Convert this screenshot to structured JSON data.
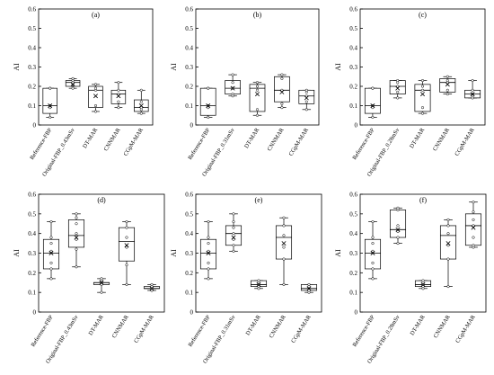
{
  "chart_data": [
    {
      "panel": "(a)",
      "type": "boxplot",
      "ylabel": "AI",
      "ylim": [
        0,
        0.6
      ],
      "yticks": [
        "0",
        "0.1",
        "0.2",
        "0.3",
        "0.4",
        "0.5",
        "0.6"
      ],
      "categories": [
        "Reference-FBP",
        "Original-FBP_0.43mSv",
        "DT-MAR",
        "CNNMAR",
        "CGpM-MAR"
      ],
      "boxes": [
        {
          "min": 0.04,
          "q1": 0.06,
          "median": 0.1,
          "q3": 0.19,
          "max": 0.19,
          "mean": 0.1,
          "points": [
            0.04,
            0.09,
            0.1,
            0.19,
            0.19
          ]
        },
        {
          "min": 0.19,
          "q1": 0.2,
          "median": 0.22,
          "q3": 0.23,
          "max": 0.24,
          "mean": 0.21,
          "points": [
            0.19,
            0.21,
            0.22,
            0.23,
            0.24
          ]
        },
        {
          "min": 0.07,
          "q1": 0.09,
          "median": 0.18,
          "q3": 0.2,
          "max": 0.21,
          "mean": 0.15,
          "points": [
            0.07,
            0.1,
            0.18,
            0.19,
            0.21
          ]
        },
        {
          "min": 0.09,
          "q1": 0.11,
          "median": 0.16,
          "q3": 0.18,
          "max": 0.22,
          "mean": 0.15,
          "points": [
            0.09,
            0.12,
            0.16,
            0.18,
            0.22
          ]
        },
        {
          "min": 0.06,
          "q1": 0.07,
          "median": 0.09,
          "q3": 0.13,
          "max": 0.18,
          "mean": 0.1,
          "points": [
            0.06,
            0.08,
            0.09,
            0.12,
            0.18
          ]
        }
      ]
    },
    {
      "panel": "(b)",
      "type": "boxplot",
      "ylabel": "AI",
      "ylim": [
        0,
        0.6
      ],
      "yticks": [
        "0",
        "0.1",
        "0.2",
        "0.3",
        "0.4",
        "0.5",
        "0.6"
      ],
      "categories": [
        "Reference-FBP",
        "Original-FBP_0.31mSv",
        "DT-MAR",
        "CNNMAR",
        "CGpM-MAR"
      ],
      "boxes": [
        {
          "min": 0.04,
          "q1": 0.05,
          "median": 0.1,
          "q3": 0.19,
          "max": 0.19,
          "mean": 0.1,
          "points": [
            0.04,
            0.09,
            0.1,
            0.19,
            0.19
          ]
        },
        {
          "min": 0.15,
          "q1": 0.16,
          "median": 0.19,
          "q3": 0.23,
          "max": 0.26,
          "mean": 0.19,
          "points": [
            0.15,
            0.16,
            0.19,
            0.22,
            0.26
          ]
        },
        {
          "min": 0.05,
          "q1": 0.07,
          "median": 0.19,
          "q3": 0.21,
          "max": 0.22,
          "mean": 0.16,
          "points": [
            0.05,
            0.08,
            0.18,
            0.2,
            0.22
          ]
        },
        {
          "min": 0.09,
          "q1": 0.12,
          "median": 0.18,
          "q3": 0.25,
          "max": 0.26,
          "mean": 0.17,
          "points": [
            0.09,
            0.11,
            0.18,
            0.24,
            0.26
          ]
        },
        {
          "min": 0.08,
          "q1": 0.11,
          "median": 0.15,
          "q3": 0.18,
          "max": 0.18,
          "mean": 0.14,
          "points": [
            0.08,
            0.12,
            0.15,
            0.17,
            0.18
          ]
        }
      ]
    },
    {
      "panel": "(c)",
      "type": "boxplot",
      "ylabel": "AI",
      "ylim": [
        0,
        0.6
      ],
      "yticks": [
        "0",
        "0.1",
        "0.2",
        "0.3",
        "0.4",
        "0.5",
        "0.6"
      ],
      "categories": [
        "Reference-FBP",
        "Original-FBP_0.28mSv",
        "DT-MAR",
        "CNNMAR",
        "CGpM-MAR"
      ],
      "boxes": [
        {
          "min": 0.04,
          "q1": 0.06,
          "median": 0.1,
          "q3": 0.19,
          "max": 0.19,
          "mean": 0.1,
          "points": [
            0.04,
            0.09,
            0.1,
            0.19,
            0.19
          ]
        },
        {
          "min": 0.14,
          "q1": 0.16,
          "median": 0.2,
          "q3": 0.23,
          "max": 0.23,
          "mean": 0.19,
          "points": [
            0.14,
            0.17,
            0.2,
            0.22,
            0.23
          ]
        },
        {
          "min": 0.06,
          "q1": 0.07,
          "median": 0.18,
          "q3": 0.21,
          "max": 0.23,
          "mean": 0.16,
          "points": [
            0.06,
            0.09,
            0.18,
            0.2,
            0.23
          ]
        },
        {
          "min": 0.16,
          "q1": 0.17,
          "median": 0.22,
          "q3": 0.24,
          "max": 0.25,
          "mean": 0.21,
          "points": [
            0.16,
            0.18,
            0.22,
            0.23,
            0.25
          ]
        },
        {
          "min": 0.14,
          "q1": 0.14,
          "median": 0.16,
          "q3": 0.18,
          "max": 0.23,
          "mean": 0.16,
          "points": [
            0.14,
            0.15,
            0.16,
            0.18,
            0.23
          ]
        }
      ]
    },
    {
      "panel": "(d)",
      "type": "boxplot",
      "ylabel": "AI",
      "ylim": [
        0,
        0.6
      ],
      "yticks": [
        "0",
        "0.1",
        "0.2",
        "0.3",
        "0.4",
        "0.5",
        "0.6"
      ],
      "categories": [
        "Reference-FBP",
        "Original-FBP_0.43mSv",
        "DT-MAR",
        "CNNMAR",
        "CGpM-MAR"
      ],
      "boxes": [
        {
          "min": 0.17,
          "q1": 0.22,
          "median": 0.3,
          "q3": 0.37,
          "max": 0.46,
          "mean": 0.3,
          "points": [
            0.17,
            0.22,
            0.25,
            0.31,
            0.35,
            0.38,
            0.46
          ]
        },
        {
          "min": 0.23,
          "q1": 0.33,
          "median": 0.39,
          "q3": 0.47,
          "max": 0.5,
          "mean": 0.38,
          "points": [
            0.23,
            0.32,
            0.37,
            0.4,
            0.45,
            0.48,
            0.5
          ]
        },
        {
          "min": 0.1,
          "q1": 0.14,
          "median": 0.15,
          "q3": 0.15,
          "max": 0.17,
          "mean": 0.15,
          "points": [
            0.1,
            0.14,
            0.15,
            0.16,
            0.17
          ]
        },
        {
          "min": 0.14,
          "q1": 0.26,
          "median": 0.36,
          "q3": 0.43,
          "max": 0.46,
          "mean": 0.34,
          "points": [
            0.14,
            0.24,
            0.33,
            0.38,
            0.43,
            0.46
          ]
        },
        {
          "min": 0.11,
          "q1": 0.12,
          "median": 0.12,
          "q3": 0.13,
          "max": 0.14,
          "mean": 0.12,
          "points": [
            0.11,
            0.12,
            0.13,
            0.14
          ]
        }
      ]
    },
    {
      "panel": "(e)",
      "type": "boxplot",
      "ylabel": "AI",
      "ylim": [
        0,
        0.6
      ],
      "yticks": [
        "0",
        "0.1",
        "0.2",
        "0.3",
        "0.4",
        "0.5",
        "0.6"
      ],
      "categories": [
        "Reference-FBP",
        "Original-FBP_0.31mSv",
        "DT-MAR",
        "CNNMAR",
        "CGpM-MAR"
      ],
      "boxes": [
        {
          "min": 0.17,
          "q1": 0.22,
          "median": 0.3,
          "q3": 0.37,
          "max": 0.46,
          "mean": 0.3,
          "points": [
            0.17,
            0.22,
            0.25,
            0.31,
            0.35,
            0.38,
            0.46
          ]
        },
        {
          "min": 0.31,
          "q1": 0.34,
          "median": 0.4,
          "q3": 0.44,
          "max": 0.5,
          "mean": 0.38,
          "points": [
            0.31,
            0.34,
            0.37,
            0.4,
            0.43,
            0.46,
            0.5
          ]
        },
        {
          "min": 0.12,
          "q1": 0.13,
          "median": 0.14,
          "q3": 0.16,
          "max": 0.16,
          "mean": 0.14,
          "points": [
            0.12,
            0.13,
            0.14,
            0.15,
            0.16
          ]
        },
        {
          "min": 0.14,
          "q1": 0.27,
          "median": 0.38,
          "q3": 0.44,
          "max": 0.48,
          "mean": 0.35,
          "points": [
            0.14,
            0.27,
            0.33,
            0.39,
            0.44,
            0.48
          ]
        },
        {
          "min": 0.1,
          "q1": 0.11,
          "median": 0.12,
          "q3": 0.14,
          "max": 0.14,
          "mean": 0.12,
          "points": [
            0.1,
            0.11,
            0.13,
            0.14
          ]
        }
      ]
    },
    {
      "panel": "(f)",
      "type": "boxplot",
      "ylabel": "AI",
      "ylim": [
        0,
        0.6
      ],
      "yticks": [
        "0",
        "0.1",
        "0.2",
        "0.3",
        "0.4",
        "0.5",
        "0.6"
      ],
      "categories": [
        "Reference-FBP",
        "Original-FBP_0.28mSv",
        "DT-MAR",
        "CNNMAR",
        "CGpM-MAR"
      ],
      "boxes": [
        {
          "min": 0.17,
          "q1": 0.22,
          "median": 0.3,
          "q3": 0.37,
          "max": 0.46,
          "mean": 0.3,
          "points": [
            0.17,
            0.22,
            0.25,
            0.31,
            0.35,
            0.38,
            0.46
          ]
        },
        {
          "min": 0.35,
          "q1": 0.38,
          "median": 0.42,
          "q3": 0.52,
          "max": 0.53,
          "mean": 0.42,
          "points": [
            0.35,
            0.38,
            0.41,
            0.44,
            0.52,
            0.53
          ]
        },
        {
          "min": 0.12,
          "q1": 0.13,
          "median": 0.14,
          "q3": 0.16,
          "max": 0.16,
          "mean": 0.14,
          "points": [
            0.12,
            0.13,
            0.14,
            0.15,
            0.16
          ]
        },
        {
          "min": 0.13,
          "q1": 0.27,
          "median": 0.39,
          "q3": 0.44,
          "max": 0.47,
          "mean": 0.35,
          "points": [
            0.13,
            0.27,
            0.34,
            0.4,
            0.44,
            0.47
          ]
        },
        {
          "min": 0.33,
          "q1": 0.34,
          "median": 0.44,
          "q3": 0.5,
          "max": 0.56,
          "mean": 0.43,
          "points": [
            0.33,
            0.34,
            0.38,
            0.44,
            0.47,
            0.51,
            0.56
          ]
        }
      ]
    }
  ]
}
